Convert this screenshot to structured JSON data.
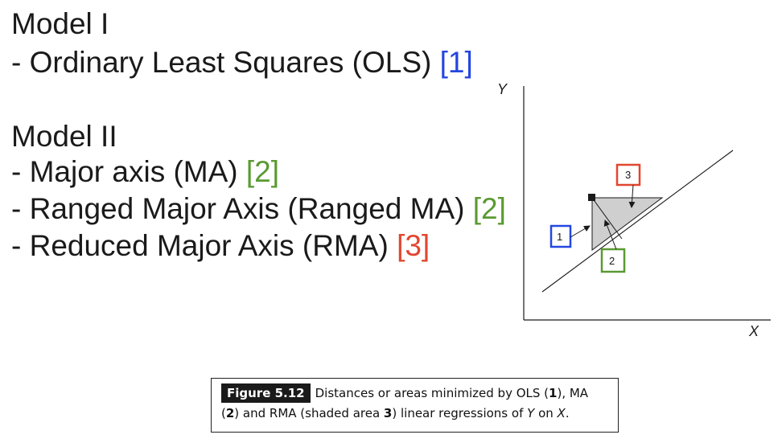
{
  "slide": {
    "model1_heading": "Model I",
    "model1_items": [
      {
        "text": "- Ordinary Least Squares (OLS) ",
        "ref": "[1]"
      }
    ],
    "model2_heading": "Model II",
    "model2_items": [
      {
        "text": "- Major axis (MA) ",
        "ref": "[2]"
      },
      {
        "text": "- Ranged Major Axis (Ranged MA) ",
        "ref": "[2]"
      },
      {
        "text": "- Reduced Major Axis (RMA) ",
        "ref": "[3]"
      }
    ]
  },
  "diagram": {
    "y_axis_label": "Y",
    "x_axis_label": "X",
    "box_labels": [
      "1",
      "2",
      "3"
    ]
  },
  "caption": {
    "figure_label": "Figure 5.12",
    "part1": "Distances or areas minimized by OLS (",
    "n1": "1",
    "part2": "), MA",
    "part3": "(",
    "n2": "2",
    "part4": ") and RMA (shaded area ",
    "n3": "3",
    "part5": ") linear regressions of ",
    "var_y": "Y",
    "part6": " on ",
    "var_x": "X",
    "part7": "."
  },
  "colors": {
    "ref_1": "#2447e0",
    "ref_2": "#5a9a32",
    "ref_3": "#e2462f",
    "shade": "#cfcfcf"
  }
}
